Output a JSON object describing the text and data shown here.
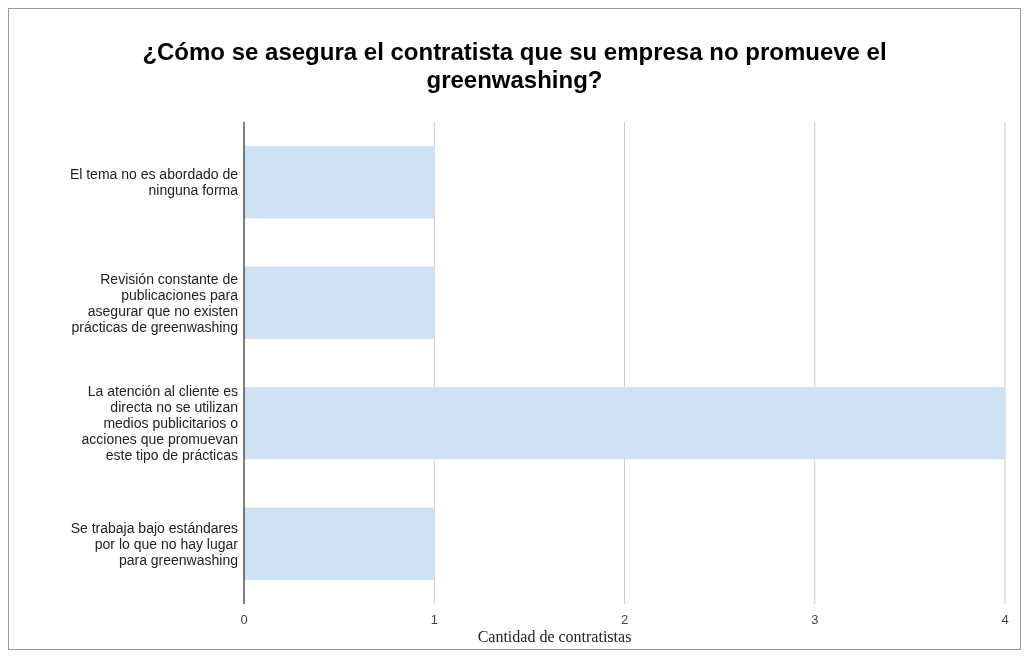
{
  "chart_data": {
    "type": "bar",
    "orientation": "horizontal",
    "title": "¿Cómo se asegura el contratista que su empresa no promueve el greenwashing?",
    "xlabel": "Cantidad de contratistas",
    "categories": [
      "El tema no es abordado de ninguna forma",
      "Revisión constante de publicaciones para asegurar que no existen prácticas de greenwashing",
      "La atención al cliente es directa no se utilizan medios publicitarios o acciones que promuevan este tipo de prácticas",
      "Se trabaja bajo estándares por lo que no hay lugar para greenwashing"
    ],
    "values": [
      1,
      1,
      4,
      1
    ],
    "color": "#cfe2f3",
    "xlim": [
      0,
      4
    ],
    "xticks": [
      0,
      1,
      2,
      3,
      4
    ],
    "grid": "x"
  }
}
